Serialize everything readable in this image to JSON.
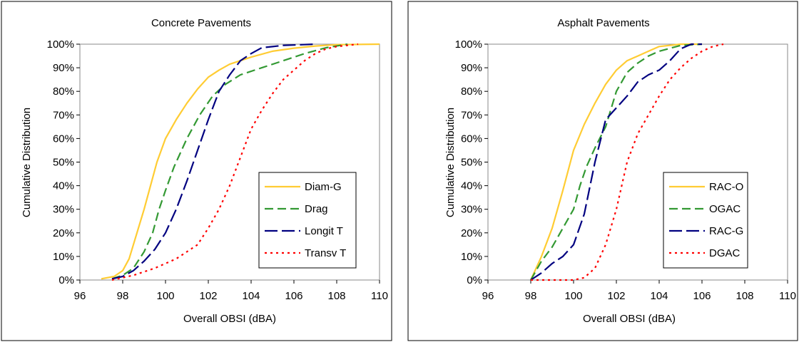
{
  "chart_data": [
    {
      "type": "line",
      "title": "Concrete Pavements",
      "xlabel": "Overall OBSI (dBA)",
      "ylabel": "Cumulative Distribution",
      "xlim": [
        96,
        110
      ],
      "ylim": [
        0,
        100
      ],
      "x_ticks": [
        96,
        98,
        100,
        102,
        104,
        106,
        108,
        110
      ],
      "x_tick_labels": [
        "96",
        "98",
        "100",
        "102",
        "104",
        "106",
        "108",
        "110"
      ],
      "y_ticks": [
        0,
        10,
        20,
        30,
        40,
        50,
        60,
        70,
        80,
        90,
        100
      ],
      "y_tick_labels": [
        "0%",
        "10%",
        "20%",
        "30%",
        "40%",
        "50%",
        "60%",
        "70%",
        "80%",
        "90%",
        "100%"
      ],
      "grid": false,
      "legend_position": "lower-right",
      "series": [
        {
          "name": "Diam-G",
          "color": "#ffcc33",
          "dash": "solid",
          "points": [
            [
              97.0,
              0.5
            ],
            [
              97.6,
              1.5
            ],
            [
              98.0,
              4
            ],
            [
              98.3,
              9
            ],
            [
              98.6,
              18
            ],
            [
              99.0,
              30
            ],
            [
              99.3,
              40
            ],
            [
              99.6,
              50
            ],
            [
              100.0,
              60
            ],
            [
              100.5,
              68
            ],
            [
              101.0,
              75
            ],
            [
              101.5,
              81
            ],
            [
              102.0,
              86
            ],
            [
              102.5,
              89
            ],
            [
              103.0,
              91.5
            ],
            [
              104.0,
              94.5
            ],
            [
              105.0,
              97
            ],
            [
              106.0,
              98.3
            ],
            [
              107.0,
              99.2
            ],
            [
              108.0,
              99.8
            ],
            [
              110.0,
              100
            ]
          ]
        },
        {
          "name": "Drag",
          "color": "#339933",
          "dash": "dash",
          "points": [
            [
              97.5,
              0.5
            ],
            [
              98.0,
              2
            ],
            [
              98.5,
              5
            ],
            [
              99.0,
              12
            ],
            [
              99.4,
              20
            ],
            [
              99.7,
              30
            ],
            [
              100.0,
              38
            ],
            [
              100.4,
              48
            ],
            [
              101.0,
              60
            ],
            [
              101.6,
              70
            ],
            [
              102.2,
              78
            ],
            [
              102.8,
              83
            ],
            [
              103.5,
              87
            ],
            [
              104.5,
              90
            ],
            [
              105.5,
              93
            ],
            [
              106.5,
              96
            ],
            [
              107.5,
              98.5
            ],
            [
              108.5,
              100
            ]
          ]
        },
        {
          "name": "Longit T",
          "color": "#000080",
          "dash": "longdash",
          "points": [
            [
              97.5,
              0.5
            ],
            [
              98.0,
              1.5
            ],
            [
              98.5,
              4
            ],
            [
              99.0,
              8
            ],
            [
              99.5,
              13
            ],
            [
              100.0,
              20
            ],
            [
              100.5,
              30
            ],
            [
              101.0,
              42
            ],
            [
              101.5,
              55
            ],
            [
              102.0,
              68
            ],
            [
              102.5,
              80
            ],
            [
              103.0,
              87
            ],
            [
              103.5,
              93
            ],
            [
              104.0,
              96
            ],
            [
              104.5,
              98.5
            ],
            [
              105.5,
              99.5
            ],
            [
              107.0,
              100
            ]
          ]
        },
        {
          "name": "Transv T",
          "color": "#ff0000",
          "dash": "dot",
          "points": [
            [
              97.5,
              0
            ],
            [
              98.5,
              2
            ],
            [
              99.5,
              5
            ],
            [
              100.5,
              9
            ],
            [
              101.5,
              15
            ],
            [
              102.0,
              22
            ],
            [
              102.5,
              30
            ],
            [
              103.0,
              40
            ],
            [
              103.5,
              52
            ],
            [
              104.0,
              64
            ],
            [
              104.5,
              72
            ],
            [
              105.0,
              79
            ],
            [
              105.5,
              85
            ],
            [
              106.0,
              89
            ],
            [
              106.5,
              93
            ],
            [
              107.0,
              96
            ],
            [
              107.5,
              98
            ],
            [
              108.0,
              99
            ],
            [
              109.0,
              100
            ]
          ]
        }
      ]
    },
    {
      "type": "line",
      "title": "Asphalt Pavements",
      "xlabel": "Overall OBSI (dBA)",
      "ylabel": "Cumulative Distribution",
      "xlim": [
        96,
        110
      ],
      "ylim": [
        0,
        100
      ],
      "x_ticks": [
        96,
        98,
        100,
        102,
        104,
        106,
        108,
        110
      ],
      "x_tick_labels": [
        "96",
        "98",
        "100",
        "102",
        "104",
        "106",
        "108",
        "110"
      ],
      "y_ticks": [
        0,
        10,
        20,
        30,
        40,
        50,
        60,
        70,
        80,
        90,
        100
      ],
      "y_tick_labels": [
        "0%",
        "10%",
        "20%",
        "30%",
        "40%",
        "50%",
        "60%",
        "70%",
        "80%",
        "90%",
        "100%"
      ],
      "grid": false,
      "legend_position": "lower-right",
      "series": [
        {
          "name": "RAC-O",
          "color": "#ffcc33",
          "dash": "solid",
          "points": [
            [
              98.0,
              0
            ],
            [
              98.5,
              10
            ],
            [
              99.0,
              22
            ],
            [
              99.5,
              38
            ],
            [
              100.0,
              55
            ],
            [
              100.5,
              66
            ],
            [
              101.0,
              75
            ],
            [
              101.5,
              83
            ],
            [
              102.0,
              89
            ],
            [
              102.5,
              93
            ],
            [
              103.0,
              95
            ],
            [
              103.5,
              97
            ],
            [
              104.0,
              99
            ],
            [
              105.0,
              100
            ],
            [
              106.0,
              100
            ]
          ]
        },
        {
          "name": "OGAC",
          "color": "#339933",
          "dash": "dash",
          "points": [
            [
              98.0,
              0
            ],
            [
              98.5,
              8
            ],
            [
              99.0,
              14
            ],
            [
              99.5,
              22
            ],
            [
              100.0,
              30
            ],
            [
              100.3,
              40
            ],
            [
              100.6,
              48
            ],
            [
              101.0,
              56
            ],
            [
              101.5,
              65
            ],
            [
              102.0,
              80
            ],
            [
              102.5,
              88
            ],
            [
              103.0,
              92
            ],
            [
              103.5,
              95
            ],
            [
              104.0,
              97
            ],
            [
              105.0,
              99.5
            ],
            [
              106.0,
              100
            ]
          ]
        },
        {
          "name": "RAC-G",
          "color": "#000080",
          "dash": "longdash",
          "points": [
            [
              98.0,
              0
            ],
            [
              98.5,
              3
            ],
            [
              99.0,
              7
            ],
            [
              99.5,
              10
            ],
            [
              100.0,
              15
            ],
            [
              100.5,
              28
            ],
            [
              101.0,
              50
            ],
            [
              101.5,
              68
            ],
            [
              102.0,
              73
            ],
            [
              102.5,
              78
            ],
            [
              103.0,
              84
            ],
            [
              103.5,
              87
            ],
            [
              104.0,
              89
            ],
            [
              104.5,
              93
            ],
            [
              105.0,
              98
            ],
            [
              105.5,
              100
            ],
            [
              106.0,
              100
            ]
          ]
        },
        {
          "name": "DGAC",
          "color": "#ff0000",
          "dash": "dot",
          "points": [
            [
              98.0,
              0
            ],
            [
              99.0,
              0
            ],
            [
              100.0,
              0
            ],
            [
              100.5,
              1
            ],
            [
              101.0,
              5
            ],
            [
              101.5,
              15
            ],
            [
              102.0,
              30
            ],
            [
              102.5,
              50
            ],
            [
              103.0,
              62
            ],
            [
              103.5,
              70
            ],
            [
              104.0,
              78
            ],
            [
              104.5,
              85
            ],
            [
              105.0,
              90
            ],
            [
              105.5,
              94
            ],
            [
              106.0,
              97
            ],
            [
              106.5,
              99
            ],
            [
              107.0,
              100
            ]
          ]
        }
      ]
    }
  ]
}
